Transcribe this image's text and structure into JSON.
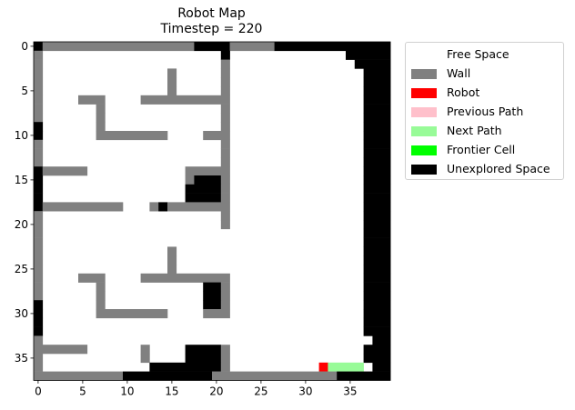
{
  "chart_data": {
    "type": "heatmap",
    "title": "Robot Map",
    "subtitle": "Timestep = 220",
    "xlabel": "",
    "ylabel": "",
    "grid_width": 40,
    "grid_height": 38,
    "x_ticks": [
      0,
      5,
      10,
      15,
      20,
      25,
      30,
      35
    ],
    "y_ticks": [
      0,
      5,
      10,
      15,
      20,
      25,
      30,
      35
    ],
    "x_range": [
      -0.5,
      39.5
    ],
    "y_range": [
      -0.5,
      37.5
    ],
    "y_axis_inverted": true,
    "grid": false,
    "legend_position": "outside-right",
    "cell_codes": {
      ".": "Free Space",
      "W": "Wall",
      "R": "Robot",
      "P": "Previous Path",
      "N": "Next Path",
      "F": "Frontier Cell",
      "U": "Unexplored Space"
    },
    "colors": {
      "Free Space": "#ffffff",
      "Wall": "#808080",
      "Robot": "#ff0000",
      "Previous Path": "#ffc0cb",
      "Next Path": "#98fb98",
      "Frontier Cell": "#00ff00",
      "Unexplored Space": "#000000"
    },
    "grid_rows": [
      "UWWWWWWWWWWWWWWWWWUUUUWWWWWUUUUUUUUUUUUU",
      "W....................U.............UUUUU",
      "W....................W..............UUUU",
      "W..............W.....W...............UUU",
      "W..............W.....W...............UUU",
      "W..............W.....W...............UUU",
      "W....WWW....WWWWWWWWWW...............UUU",
      "W......W.............W...............UUU",
      "W......W.............W...............UUU",
      "U......W.............W...............UUU",
      "U......WWWWWWWW....WWW...............UUU",
      "W....................W...............UUU",
      "W....................W...............UUU",
      "W....................W...............UUU",
      "UWWWWW...........WWWWW...............UUU",
      "U................WUUUW...............UUU",
      "U................UUUUW...............UUU",
      "U................UUUUW...............UUU",
      "UWWWWWWWWW...WUWWWWWWW...............UUU",
      "W....................W...............UUU",
      "W....................W...............UUU",
      "W....................................UUU",
      "W....................................UUU",
      "W..............W.....................UUU",
      "W..............W.....................UUU",
      "W..............W.....................UUU",
      "W....WWW....WWWWWWWWWW...............UUU",
      "W......W...........UUW...............UUU",
      "W......W...........UUW...............UUU",
      "U......W...........UUW...............UUU",
      "U......WWWWWWWW....WWW...............UUU",
      "U....................................UUU",
      "U....................................UUU",
      "W.....................................UU",
      "WWWWWW......W....UUUUW...............UUU",
      "W...........W....UUUUW...............UUU",
      "W............UUUUUUUUW..........RNNNN.UU",
      "WWWWWWWWWWUUUUUUUUUUWWWWWWWWWWWWWWUUUUUU"
    ],
    "legend_entries": [
      "Free Space",
      "Wall",
      "Robot",
      "Previous Path",
      "Next Path",
      "Frontier Cell",
      "Unexplored Space"
    ]
  }
}
